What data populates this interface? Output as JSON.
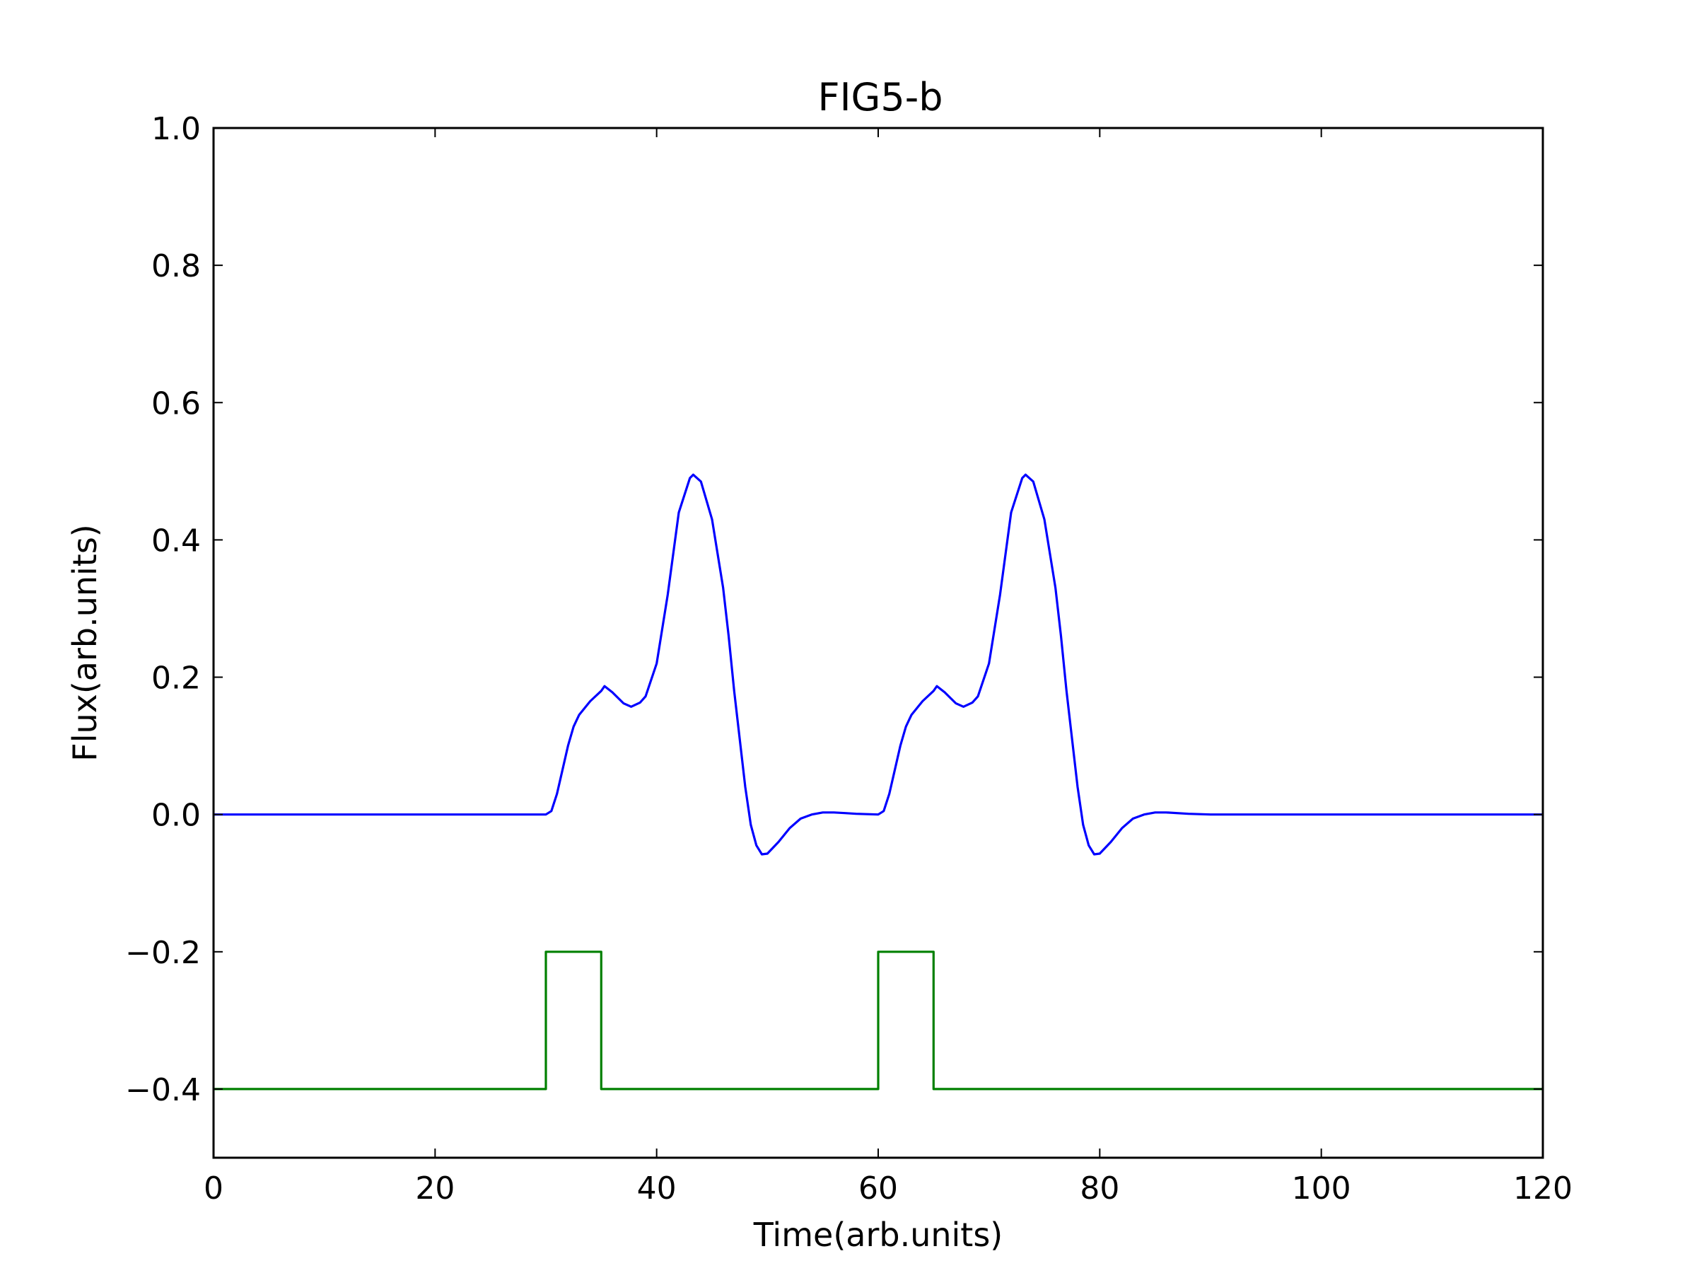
{
  "chart_data": {
    "type": "line",
    "title": "FIG5-b",
    "xlabel": "Time(arb.units)",
    "ylabel": "Flux(arb.units)",
    "xlim": [
      0,
      120
    ],
    "ylim": [
      -0.5,
      1.0
    ],
    "x_ticks": [
      0,
      20,
      40,
      60,
      80,
      100,
      120
    ],
    "x_tick_labels": [
      "0",
      "20",
      "40",
      "60",
      "80",
      "100",
      "120"
    ],
    "y_ticks": [
      -0.4,
      -0.2,
      0.0,
      0.2,
      0.4,
      0.6,
      0.8,
      1.0
    ],
    "y_tick_labels": [
      "−0.4",
      "−0.2",
      "0.0",
      "0.2",
      "0.4",
      "0.6",
      "0.8",
      "1.0"
    ],
    "grid": false,
    "series": [
      {
        "color": "#0000ff",
        "x": [
          0,
          30,
          30.5,
          31,
          31.5,
          32,
          32.5,
          33,
          34,
          35,
          35.3,
          36,
          37,
          37.7,
          38.5,
          39,
          40,
          41,
          42,
          43,
          43.3,
          44,
          45,
          46,
          46.5,
          47,
          48,
          48.5,
          49,
          49.5,
          50,
          51,
          52,
          53,
          54,
          55,
          56,
          57,
          58,
          60,
          60.5,
          61,
          61.5,
          62,
          62.5,
          63,
          64,
          65,
          65.3,
          66,
          67,
          67.7,
          68.5,
          69,
          70,
          71,
          72,
          73,
          73.3,
          74,
          75,
          76,
          76.5,
          77,
          78,
          78.5,
          79,
          79.5,
          80,
          81,
          82,
          83,
          84,
          85,
          86,
          88,
          90,
          100,
          120
        ],
        "y": [
          0,
          0,
          0.005,
          0.03,
          0.065,
          0.1,
          0.128,
          0.145,
          0.165,
          0.18,
          0.187,
          0.178,
          0.162,
          0.157,
          0.163,
          0.172,
          0.22,
          0.32,
          0.44,
          0.49,
          0.495,
          0.485,
          0.43,
          0.33,
          0.26,
          0.18,
          0.04,
          -0.015,
          -0.045,
          -0.058,
          -0.057,
          -0.04,
          -0.02,
          -0.006,
          0.0,
          0.003,
          0.003,
          0.002,
          0.001,
          0.0,
          0.005,
          0.03,
          0.065,
          0.1,
          0.128,
          0.145,
          0.165,
          0.18,
          0.187,
          0.178,
          0.162,
          0.157,
          0.163,
          0.172,
          0.22,
          0.32,
          0.44,
          0.49,
          0.495,
          0.485,
          0.43,
          0.33,
          0.26,
          0.18,
          0.04,
          -0.015,
          -0.045,
          -0.058,
          -0.057,
          -0.04,
          -0.02,
          -0.006,
          0.0,
          0.003,
          0.003,
          0.001,
          0.0,
          0.0,
          0.0
        ]
      },
      {
        "color": "#008000",
        "x": [
          0,
          30,
          30,
          35,
          35,
          60,
          60,
          65,
          65,
          120
        ],
        "y": [
          -0.4,
          -0.4,
          -0.2,
          -0.2,
          -0.4,
          -0.4,
          -0.2,
          -0.2,
          -0.4,
          -0.4
        ]
      }
    ]
  }
}
